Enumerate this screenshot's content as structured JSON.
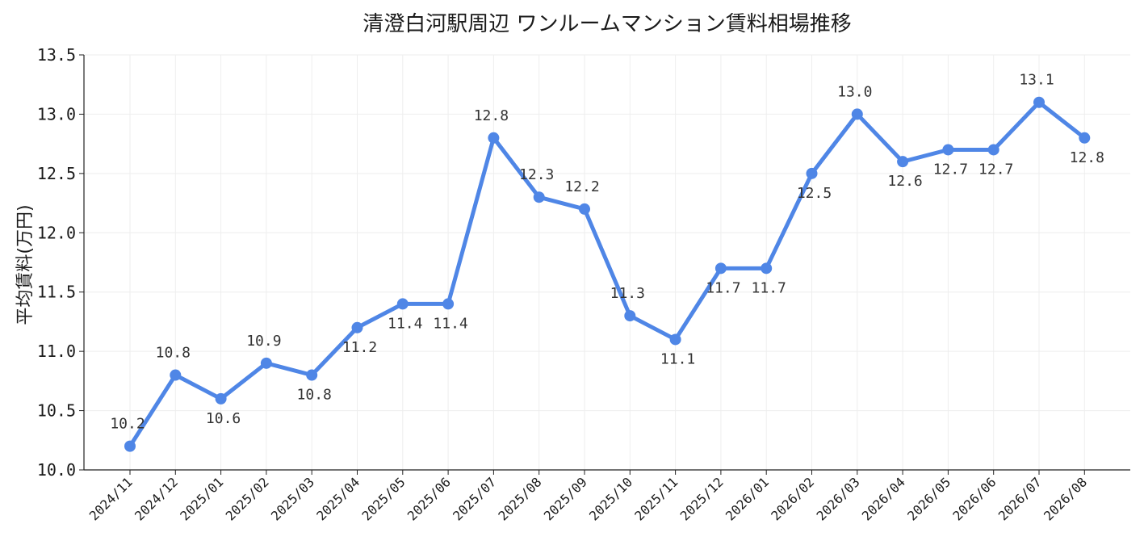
{
  "chart_data": {
    "type": "line",
    "title": "清澄白河駅周辺 ワンルームマンション賃料相場推移",
    "xlabel": "",
    "ylabel": "平均賃料(万円)",
    "ylim": [
      10.0,
      13.5
    ],
    "yticks": [
      "10.0",
      "10.5",
      "11.0",
      "11.5",
      "12.0",
      "12.5",
      "13.0",
      "13.5"
    ],
    "categories": [
      "2024/11",
      "2024/12",
      "2025/01",
      "2025/02",
      "2025/03",
      "2025/04",
      "2025/05",
      "2025/06",
      "2025/07",
      "2025/08",
      "2025/09",
      "2025/10",
      "2025/11",
      "2025/12",
      "2026/01",
      "2026/02",
      "2026/03",
      "2026/04",
      "2026/05",
      "2026/06",
      "2026/07",
      "2026/08"
    ],
    "series": [
      {
        "values": [
          10.2,
          10.8,
          10.6,
          10.9,
          10.8,
          11.2,
          11.4,
          11.4,
          12.8,
          12.3,
          12.2,
          11.3,
          11.1,
          11.7,
          11.7,
          12.5,
          13.0,
          12.6,
          12.7,
          12.7,
          13.1,
          12.8
        ],
        "labels": [
          "10.2",
          "10.8",
          "10.6",
          "10.9",
          "10.8",
          "11.2",
          "11.4",
          "11.4",
          "12.8",
          "12.3",
          "12.2",
          "11.3",
          "11.1",
          "11.7",
          "11.7",
          "12.5",
          "13.0",
          "12.6",
          "12.7",
          "12.7",
          "13.1",
          "12.8"
        ],
        "color": "#4f86e6"
      }
    ],
    "grid": true,
    "legend": "none"
  }
}
